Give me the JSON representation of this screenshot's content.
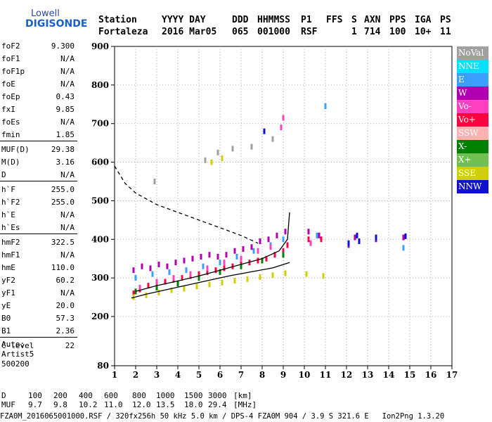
{
  "logo": {
    "line1": "Lowell",
    "line2": "DIGISONDE"
  },
  "header": {
    "labels": [
      "Station",
      "YYYY DAY",
      "DDD",
      "HHMMSS",
      "P1",
      "FFS",
      "S",
      "AXN",
      "PPS",
      "IGA",
      "PS"
    ],
    "values": [
      "Fortaleza",
      "2016 Mar05",
      "065",
      "001000",
      "RSF",
      "1",
      "714",
      "100",
      "10+",
      "11"
    ]
  },
  "params": {
    "group1": [
      {
        "name": "foF2",
        "value": "9.300"
      },
      {
        "name": "foF1",
        "value": "N/A"
      },
      {
        "name": "foF1p",
        "value": "N/A"
      },
      {
        "name": "foE",
        "value": "N/A"
      },
      {
        "name": "foEp",
        "value": "0.43"
      },
      {
        "name": "fxI",
        "value": "9.85"
      },
      {
        "name": "foEs",
        "value": "N/A"
      },
      {
        "name": "fmin",
        "value": "1.85"
      }
    ],
    "group2": [
      {
        "name": "MUF(D)",
        "value": "29.38"
      },
      {
        "name": "M(D)",
        "value": "3.16"
      },
      {
        "name": "D",
        "value": "N/A"
      }
    ],
    "group3": [
      {
        "name": "h`F",
        "value": "255.0"
      },
      {
        "name": "h`F2",
        "value": "255.0"
      },
      {
        "name": "h`E",
        "value": "N/A"
      },
      {
        "name": "h`Es",
        "value": "N/A"
      }
    ],
    "group4": [
      {
        "name": "hmF2",
        "value": "322.5"
      },
      {
        "name": "hmF1",
        "value": "N/A"
      },
      {
        "name": "hmE",
        "value": "110.0"
      },
      {
        "name": "yF2",
        "value": "60.2"
      },
      {
        "name": "yF1",
        "value": "N/A"
      },
      {
        "name": "yE",
        "value": "20.0"
      },
      {
        "name": "B0",
        "value": "57.3"
      },
      {
        "name": "B1",
        "value": "2.36"
      }
    ],
    "group5": [
      {
        "name": "C-level",
        "value": "22"
      }
    ],
    "auto_lines": [
      "Auto:",
      "Artist5",
      "500200"
    ]
  },
  "footer": {
    "d_label": "D",
    "d_values": [
      "100",
      "200",
      "400",
      "600",
      "800",
      "1000",
      "1500",
      "3000",
      "[km]"
    ],
    "muf_label": "MUF",
    "muf_values": [
      "9.7",
      "9.8",
      "10.2",
      "11.0",
      "12.0",
      "13.5",
      "18.0",
      "29.4",
      "[MHz]"
    ],
    "file_line": "FZA0M_2016065001000.RSF / 320fx256h 50 kHz 5.0 km / DPS-4 FZA0M 904 / 3.9 S 321.6 E   Ion2Png 1.3.20"
  },
  "legend": [
    {
      "label": "NoVal",
      "color": "#a0a0a0"
    },
    {
      "label": "NNE",
      "color": "#00e0ff"
    },
    {
      "label": "E",
      "color": "#3aa0ff"
    },
    {
      "label": "W",
      "color": "#b000b0"
    },
    {
      "label": "Vo-",
      "color": "#ff40c0"
    },
    {
      "label": "Vo+",
      "color": "#ff0040"
    },
    {
      "label": "SSW",
      "color": "#ffb0b0"
    },
    {
      "label": "X-",
      "color": "#008000"
    },
    {
      "label": "X+",
      "color": "#70c050"
    },
    {
      "label": "SSE",
      "color": "#d0d000"
    },
    {
      "label": "NNW",
      "color": "#1010d0"
    }
  ],
  "chart_data": {
    "type": "scatter",
    "title": "",
    "xlabel": "",
    "ylabel": "",
    "xlim": [
      1,
      17
    ],
    "ylim": [
      80,
      900
    ],
    "x_ticks": [
      1,
      2,
      3,
      4,
      5,
      6,
      7,
      8,
      9,
      10,
      11,
      12,
      13,
      14,
      15,
      16,
      17
    ],
    "y_ticks": [
      80,
      200,
      300,
      400,
      500,
      600,
      700,
      800,
      900
    ],
    "grid": true,
    "series": [
      {
        "name": "Vo+",
        "color": "#ff0040",
        "points": [
          [
            1.9,
            260
          ],
          [
            2.2,
            270
          ],
          [
            2.6,
            280
          ],
          [
            3.0,
            285
          ],
          [
            3.4,
            290
          ],
          [
            3.8,
            295
          ],
          [
            4.2,
            300
          ],
          [
            4.6,
            305
          ],
          [
            5.0,
            310
          ],
          [
            5.4,
            315
          ],
          [
            5.8,
            320
          ],
          [
            6.2,
            325
          ],
          [
            6.6,
            330
          ],
          [
            7.0,
            335
          ],
          [
            7.4,
            340
          ],
          [
            7.8,
            345
          ],
          [
            8.2,
            350
          ],
          [
            8.6,
            360
          ],
          [
            9.0,
            370
          ],
          [
            9.2,
            385
          ],
          [
            10.2,
            400
          ],
          [
            10.8,
            400
          ]
        ]
      },
      {
        "name": "W",
        "color": "#b000b0",
        "points": [
          [
            1.9,
            320
          ],
          [
            2.3,
            330
          ],
          [
            2.7,
            325
          ],
          [
            3.1,
            335
          ],
          [
            3.5,
            330
          ],
          [
            3.9,
            340
          ],
          [
            4.3,
            345
          ],
          [
            4.7,
            350
          ],
          [
            5.1,
            355
          ],
          [
            5.5,
            360
          ],
          [
            5.9,
            355
          ],
          [
            6.3,
            360
          ],
          [
            6.7,
            370
          ],
          [
            7.1,
            375
          ],
          [
            7.5,
            380
          ],
          [
            7.9,
            395
          ],
          [
            8.3,
            400
          ],
          [
            8.7,
            410
          ],
          [
            9.1,
            420
          ],
          [
            10.2,
            420
          ],
          [
            10.7,
            410
          ],
          [
            12.1,
            385
          ],
          [
            12.4,
            405
          ],
          [
            13.4,
            400
          ],
          [
            14.7,
            405
          ]
        ]
      },
      {
        "name": "E",
        "color": "#3aa0ff",
        "points": [
          [
            2.0,
            300
          ],
          [
            2.8,
            310
          ],
          [
            3.6,
            315
          ],
          [
            4.4,
            320
          ],
          [
            5.2,
            330
          ],
          [
            6.0,
            340
          ],
          [
            6.8,
            355
          ],
          [
            7.6,
            370
          ],
          [
            8.4,
            385
          ],
          [
            9.0,
            400
          ],
          [
            10.6,
            410
          ],
          [
            11.0,
            745
          ],
          [
            14.7,
            378
          ]
        ]
      },
      {
        "name": "SSE",
        "color": "#d0d000",
        "points": [
          [
            1.9,
            250
          ],
          [
            2.5,
            255
          ],
          [
            3.1,
            262
          ],
          [
            3.7,
            268
          ],
          [
            4.3,
            272
          ],
          [
            4.9,
            278
          ],
          [
            5.5,
            283
          ],
          [
            6.1,
            288
          ],
          [
            6.7,
            293
          ],
          [
            7.3,
            297
          ],
          [
            7.9,
            302
          ],
          [
            8.5,
            307
          ],
          [
            9.1,
            312
          ],
          [
            10.1,
            310
          ],
          [
            10.9,
            305
          ],
          [
            5.6,
            600
          ],
          [
            6.1,
            610
          ]
        ]
      },
      {
        "name": "Vo-",
        "color": "#ff40c0",
        "points": [
          [
            2.2,
            275
          ],
          [
            3.0,
            290
          ],
          [
            3.8,
            300
          ],
          [
            4.6,
            310
          ],
          [
            5.4,
            325
          ],
          [
            6.2,
            340
          ],
          [
            7.0,
            350
          ],
          [
            7.8,
            370
          ],
          [
            8.4,
            380
          ],
          [
            8.9,
            690
          ],
          [
            9.0,
            715
          ],
          [
            10.3,
            390
          ]
        ]
      },
      {
        "name": "X-",
        "color": "#008000",
        "points": [
          [
            2.0,
            265
          ],
          [
            3.0,
            275
          ],
          [
            4.0,
            285
          ],
          [
            5.0,
            300
          ],
          [
            6.0,
            315
          ],
          [
            7.0,
            330
          ],
          [
            8.0,
            345
          ],
          [
            9.0,
            360
          ]
        ]
      },
      {
        "name": "NNW",
        "color": "#1010d0",
        "points": [
          [
            8.1,
            680
          ],
          [
            12.1,
            390
          ],
          [
            12.5,
            410
          ],
          [
            12.6,
            395
          ],
          [
            13.4,
            405
          ],
          [
            14.8,
            408
          ]
        ]
      },
      {
        "name": "NoVal",
        "color": "#a0a0a0",
        "points": [
          [
            2.9,
            550
          ],
          [
            5.3,
            605
          ],
          [
            5.9,
            625
          ],
          [
            6.6,
            635
          ],
          [
            7.5,
            640
          ],
          [
            8.5,
            660
          ]
        ]
      }
    ],
    "trace": {
      "name": "trace",
      "color": "#000000",
      "points": [
        [
          1.8,
          248
        ],
        [
          2.5,
          258
        ],
        [
          3.5,
          270
        ],
        [
          4.5,
          282
        ],
        [
          5.5,
          294
        ],
        [
          6.5,
          306
        ],
        [
          7.5,
          316
        ],
        [
          8.5,
          326
        ],
        [
          9.3,
          340
        ]
      ]
    },
    "trace_upper": {
      "name": "trace_upper",
      "color": "#000000",
      "points": [
        [
          2.0,
          265
        ],
        [
          3.0,
          280
        ],
        [
          4.0,
          292
        ],
        [
          5.0,
          305
        ],
        [
          6.0,
          320
        ],
        [
          7.0,
          335
        ],
        [
          8.0,
          350
        ],
        [
          8.8,
          370
        ],
        [
          9.2,
          400
        ],
        [
          9.3,
          470
        ]
      ]
    },
    "dashed_profile": {
      "name": "profile",
      "color": "#000000",
      "points": [
        [
          1.0,
          590
        ],
        [
          1.5,
          545
        ],
        [
          2.0,
          520
        ],
        [
          3.0,
          490
        ],
        [
          4.0,
          470
        ],
        [
          5.0,
          450
        ],
        [
          6.0,
          430
        ],
        [
          7.0,
          410
        ],
        [
          7.8,
          390
        ]
      ]
    }
  }
}
